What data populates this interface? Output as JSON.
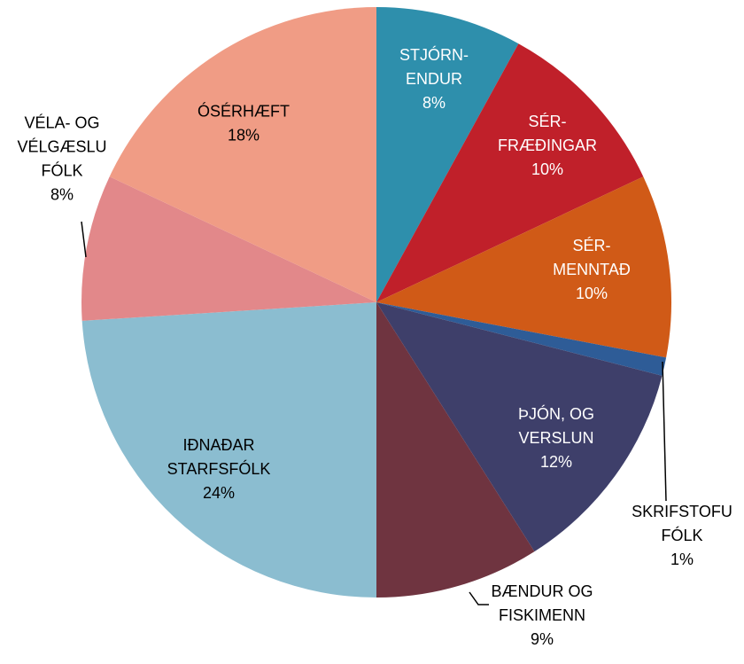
{
  "chart_data": {
    "type": "pie",
    "categories": [
      "STJÓRN-\nENDUR",
      "SÉR-\nFRÆÐINGAR",
      "SÉR-\nMENNTAÐ",
      "SKRIFSTOFU\nFÓLK",
      "ÞJÓN, OG\nVERSLUN",
      "BÆNDUR OG\nFISKIMENN",
      "IÐNAÐAR\nSTARFSFÓLK",
      "VÉLA- OG\nVÉLGÆSLU\nFÓLK",
      "ÓSÉRHÆFT"
    ],
    "values": [
      8,
      10,
      10,
      1,
      12,
      9,
      24,
      8,
      18
    ],
    "value_labels": [
      "8%",
      "10%",
      "10%",
      "1%",
      "12%",
      "9%",
      "24%",
      "8%",
      "18%"
    ],
    "colors": [
      "#2e8fac",
      "#c0202a",
      "#d05a17",
      "#2e5c97",
      "#3e3f6a",
      "#6f3440",
      "#8bbdd0",
      "#e2888a",
      "#f09c85"
    ]
  }
}
